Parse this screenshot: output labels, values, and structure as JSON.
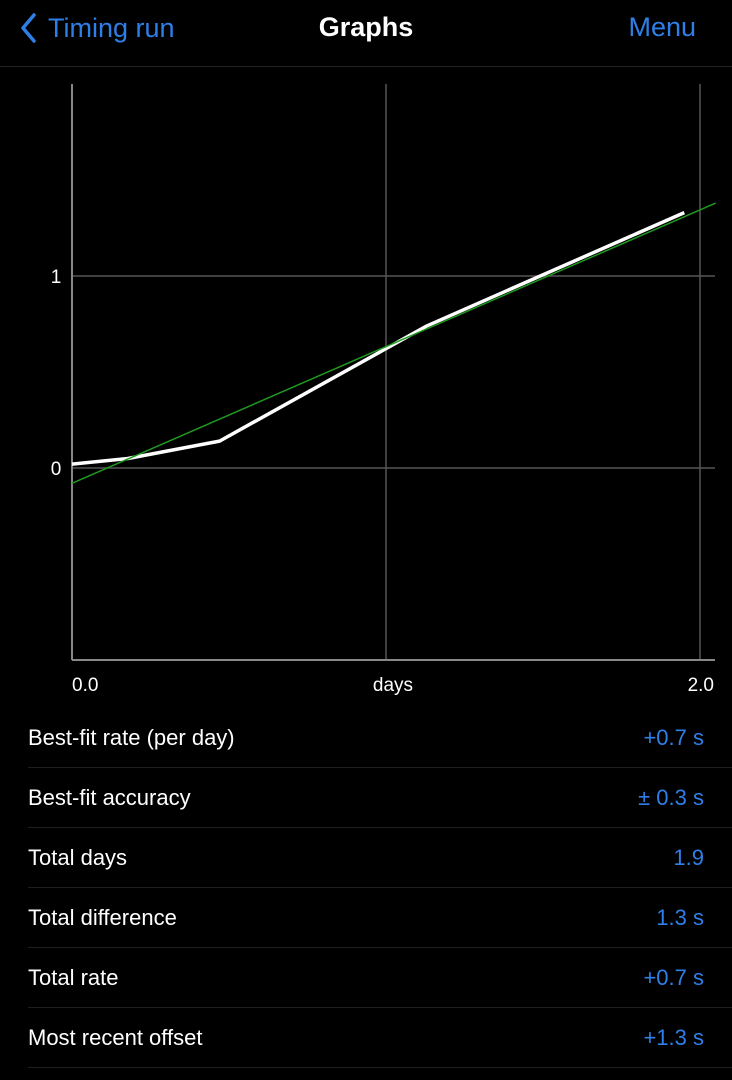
{
  "nav": {
    "back_label": "Timing run",
    "title": "Graphs",
    "menu_label": "Menu"
  },
  "chart_data": {
    "type": "line",
    "xlabel": "days",
    "x_tick_labels": [
      "0.0",
      "2.0"
    ],
    "y_tick_labels": [
      "1",
      "0"
    ],
    "xlim": [
      0,
      2.05
    ],
    "ylim": [
      -1,
      2
    ],
    "grid": true,
    "series": [
      {
        "color": "#ffffff",
        "x": [
          0,
          0.18,
          0.47,
          1.13,
          1.95
        ],
        "y": [
          0.02,
          0.05,
          0.14,
          0.74,
          1.33
        ]
      },
      {
        "color": "#1f9a1f",
        "x": [
          0,
          2.05
        ],
        "y": [
          -0.08,
          1.38
        ]
      }
    ]
  },
  "stats": [
    {
      "label": "Best-fit rate (per day)",
      "value": "+0.7 s"
    },
    {
      "label": "Best-fit accuracy",
      "value": "± 0.3 s"
    },
    {
      "label": "Total days",
      "value": "1.9"
    },
    {
      "label": "Total difference",
      "value": "1.3 s"
    },
    {
      "label": "Total rate",
      "value": "+0.7 s"
    },
    {
      "label": "Most recent offset",
      "value": "+1.3 s"
    }
  ]
}
